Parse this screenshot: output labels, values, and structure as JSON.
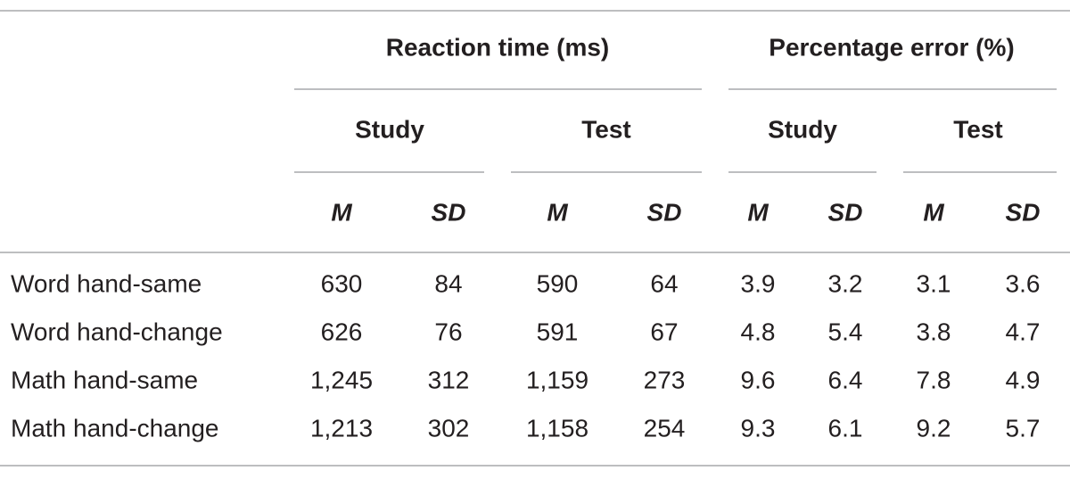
{
  "table": {
    "group_headers": [
      "Reaction time (ms)",
      "Percentage error (%)"
    ],
    "sub_headers": [
      "Study",
      "Test",
      "Study",
      "Test"
    ],
    "column_headers": [
      "M",
      "SD",
      "M",
      "SD",
      "M",
      "SD",
      "M",
      "SD"
    ],
    "rows": [
      {
        "label": "Word hand-same",
        "cells": [
          "630",
          "84",
          "590",
          "64",
          "3.9",
          "3.2",
          "3.1",
          "3.6"
        ]
      },
      {
        "label": "Word hand-change",
        "cells": [
          "626",
          "76",
          "591",
          "67",
          "4.8",
          "5.4",
          "3.8",
          "4.7"
        ]
      },
      {
        "label": "Math hand-same",
        "cells": [
          "1,245",
          "312",
          "1,159",
          "273",
          "9.6",
          "6.4",
          "7.8",
          "4.9"
        ]
      },
      {
        "label": "Math hand-change",
        "cells": [
          "1,213",
          "302",
          "1,158",
          "254",
          "9.3",
          "6.1",
          "9.2",
          "5.7"
        ]
      }
    ]
  }
}
